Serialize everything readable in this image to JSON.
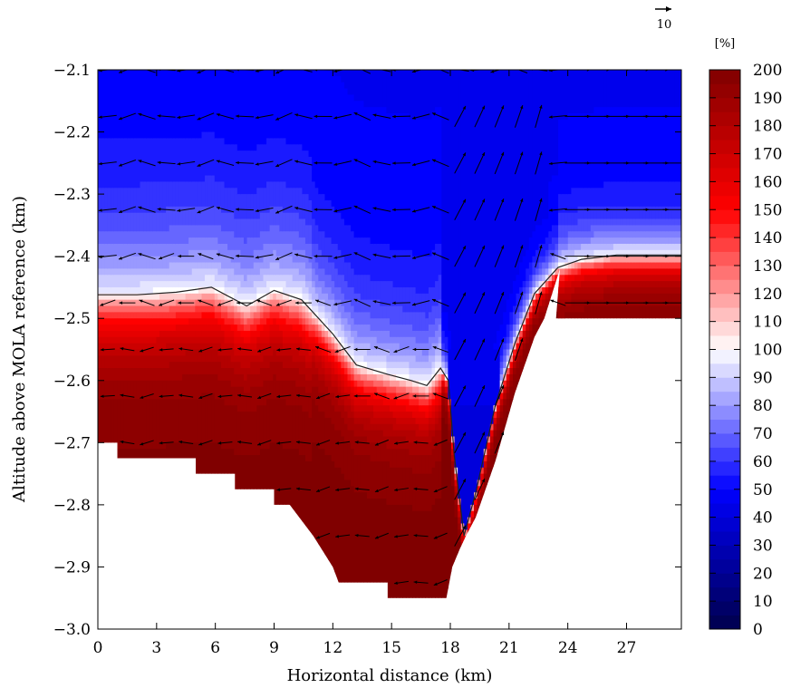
{
  "chart_data": {
    "type": "heatmap",
    "xlabel": "Horizontal distance (km)",
    "ylabel": "Altitude above MOLA reference (km)",
    "xlim": [
      0,
      29.8
    ],
    "ylim": [
      -3.0,
      -2.1
    ],
    "x_ticks": [
      0,
      3,
      6,
      9,
      12,
      15,
      18,
      21,
      24,
      27
    ],
    "x_tick_labels": [
      "0",
      "3",
      "6",
      "9",
      "12",
      "15",
      "18",
      "21",
      "24",
      "27"
    ],
    "y_ticks": [
      -2.1,
      -2.2,
      -2.3,
      -2.4,
      -2.5,
      -2.6,
      -2.7,
      -2.8,
      -2.9,
      -3.0
    ],
    "y_tick_labels": [
      "−2.1",
      "−2.2",
      "−2.3",
      "−2.4",
      "−2.5",
      "−2.6",
      "−2.7",
      "−2.8",
      "−2.9",
      "−3.0"
    ],
    "colorbar": {
      "unit_label": "[%]",
      "range": [
        0,
        200
      ],
      "step": 5,
      "ticks": [
        0,
        10,
        20,
        30,
        40,
        50,
        60,
        70,
        80,
        90,
        100,
        110,
        120,
        130,
        140,
        150,
        160,
        170,
        180,
        190,
        200
      ],
      "tick_labels": [
        "0",
        "10",
        "20",
        "30",
        "40",
        "50",
        "60",
        "70",
        "80",
        "90",
        "100",
        "110",
        "120",
        "130",
        "140",
        "150",
        "160",
        "170",
        "180",
        "190",
        "200"
      ],
      "colormap": "seismic"
    },
    "contour_100_boundary": [
      [
        0,
        -2.462
      ],
      [
        2,
        -2.462
      ],
      [
        4,
        -2.458
      ],
      [
        5.8,
        -2.45
      ],
      [
        7.6,
        -2.48
      ],
      [
        9,
        -2.455
      ],
      [
        10.4,
        -2.47
      ],
      [
        12,
        -2.525
      ],
      [
        13.2,
        -2.575
      ],
      [
        14.8,
        -2.59
      ],
      [
        16,
        -2.6
      ],
      [
        16.8,
        -2.608
      ],
      [
        17.5,
        -2.58
      ],
      [
        17.9,
        -2.6
      ],
      [
        18.2,
        -2.72
      ],
      [
        18.7,
        -2.85
      ],
      [
        19.3,
        -2.78
      ],
      [
        20.3,
        -2.64
      ],
      [
        21.3,
        -2.54
      ],
      [
        22.3,
        -2.46
      ],
      [
        23.5,
        -2.418
      ],
      [
        24.7,
        -2.405
      ],
      [
        26.5,
        -2.398
      ],
      [
        28,
        -2.398
      ],
      [
        29.8,
        -2.398
      ]
    ],
    "terrain_profile": [
      [
        0,
        -2.7
      ],
      [
        1,
        -2.7
      ],
      [
        1,
        -2.725
      ],
      [
        5,
        -2.725
      ],
      [
        5,
        -2.75
      ],
      [
        7,
        -2.75
      ],
      [
        7,
        -2.775
      ],
      [
        9,
        -2.775
      ],
      [
        9,
        -2.8
      ],
      [
        9.8,
        -2.8
      ],
      [
        10.4,
        -2.825
      ],
      [
        11,
        -2.85
      ],
      [
        11.5,
        -2.875
      ],
      [
        12,
        -2.9
      ],
      [
        12.3,
        -2.925
      ],
      [
        14.8,
        -2.925
      ],
      [
        14.8,
        -2.95
      ],
      [
        17.8,
        -2.95
      ],
      [
        18.1,
        -2.9
      ],
      [
        18.5,
        -2.87
      ],
      [
        18.8,
        -2.85
      ],
      [
        19.3,
        -2.82
      ],
      [
        19.8,
        -2.775
      ],
      [
        20.3,
        -2.73
      ],
      [
        20.8,
        -2.675
      ],
      [
        21.3,
        -2.62
      ],
      [
        21.8,
        -2.575
      ],
      [
        22.3,
        -2.53
      ],
      [
        22.8,
        -2.5
      ],
      [
        23.3,
        -2.45
      ],
      [
        23.6,
        -2.42
      ],
      [
        29.8,
        -2.42
      ],
      [
        29.8,
        -2.5
      ],
      [
        23.4,
        -2.5
      ]
    ],
    "wind_vectors": {
      "levels": [
        -2.1,
        -2.175,
        -2.25,
        -2.325,
        -2.4,
        -2.475,
        -2.55,
        -2.625,
        -2.7,
        -2.775,
        -2.85,
        -2.925
      ],
      "reference_arrow_value": "10"
    }
  }
}
